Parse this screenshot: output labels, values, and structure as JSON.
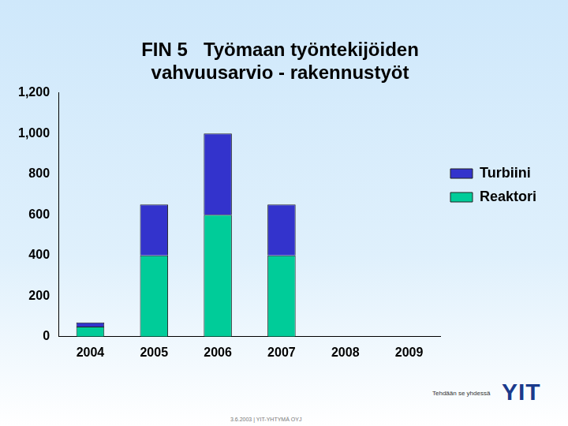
{
  "chart_data": {
    "type": "bar",
    "title": [
      "FIN 5   Työmaan työntekijöiden",
      "vahvuusarvio - rakennustyöt"
    ],
    "categories": [
      "2004",
      "2005",
      "2006",
      "2007",
      "2008",
      "2009"
    ],
    "series": [
      {
        "name": "Reaktori",
        "color": "#00cc99",
        "values": [
          50,
          400,
          600,
          400,
          null,
          null
        ]
      },
      {
        "name": "Turbiini",
        "color": "#3333cc",
        "values": [
          20,
          250,
          400,
          250,
          null,
          null
        ]
      }
    ],
    "stacked": true,
    "ylim": [
      0,
      1200
    ],
    "yticks": [
      0,
      200,
      400,
      600,
      800,
      1000,
      1200
    ],
    "grid": false,
    "legend": "right"
  },
  "footer": {
    "slogan": "Tehdään se yhdessä",
    "logo": "YIT",
    "line": "3.6.2003  |  YIT-YHTYMÄ OYJ"
  }
}
